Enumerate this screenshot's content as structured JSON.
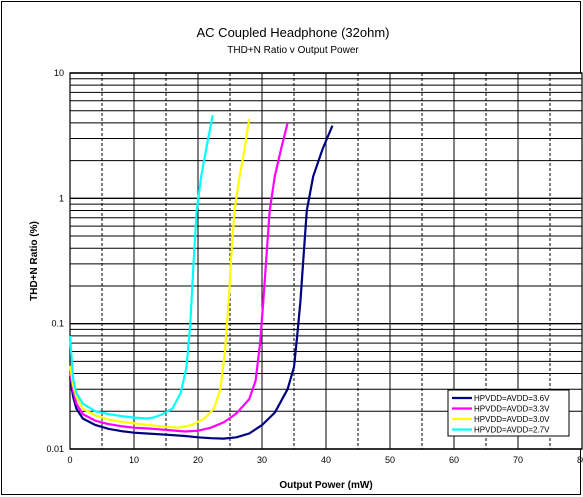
{
  "chart_data": {
    "type": "line",
    "title": "AC Coupled Headphone (32ohm)",
    "subtitle": "THD+N Ratio v Output Power",
    "xlabel": "Output Power (mW)",
    "ylabel": "THD+N Ratio (%)",
    "xlim": [
      0,
      80
    ],
    "ylim": [
      0.01,
      10
    ],
    "yscale": "log",
    "x_ticks": [
      "0",
      "10",
      "20",
      "30",
      "40",
      "50",
      "60",
      "70",
      "80"
    ],
    "y_ticks": [
      "0.01",
      "0.1",
      "1",
      "10"
    ],
    "grid": true,
    "legend_position": "bottom-right",
    "series": [
      {
        "name": "HPVDD=AVDD=3.6V",
        "color": "#000080",
        "points": [
          [
            0,
            0.038
          ],
          [
            0.5,
            0.026
          ],
          [
            1,
            0.021
          ],
          [
            2,
            0.0175
          ],
          [
            4,
            0.0155
          ],
          [
            6,
            0.0145
          ],
          [
            8,
            0.0139
          ],
          [
            10,
            0.0135
          ],
          [
            12,
            0.0133
          ],
          [
            15,
            0.013
          ],
          [
            18,
            0.0127
          ],
          [
            20,
            0.0124
          ],
          [
            22,
            0.0122
          ],
          [
            24,
            0.0121
          ],
          [
            26,
            0.0124
          ],
          [
            28,
            0.0133
          ],
          [
            30,
            0.0155
          ],
          [
            32,
            0.0195
          ],
          [
            34,
            0.03
          ],
          [
            35,
            0.045
          ],
          [
            35.5,
            0.08
          ],
          [
            36,
            0.15
          ],
          [
            36.5,
            0.35
          ],
          [
            37,
            0.8
          ],
          [
            38,
            1.5
          ],
          [
            39.5,
            2.5
          ],
          [
            41,
            3.8
          ]
        ]
      },
      {
        "name": "HPVDD=AVDD=3.3V",
        "color": "#ff00ff",
        "points": [
          [
            0,
            0.042
          ],
          [
            0.5,
            0.029
          ],
          [
            1,
            0.023
          ],
          [
            2,
            0.019
          ],
          [
            4,
            0.0168
          ],
          [
            6,
            0.0158
          ],
          [
            8,
            0.0152
          ],
          [
            10,
            0.0148
          ],
          [
            12,
            0.0146
          ],
          [
            15,
            0.0142
          ],
          [
            18,
            0.0138
          ],
          [
            20,
            0.014
          ],
          [
            22,
            0.0148
          ],
          [
            24,
            0.0163
          ],
          [
            26,
            0.0192
          ],
          [
            28,
            0.025
          ],
          [
            29,
            0.035
          ],
          [
            29.7,
            0.07
          ],
          [
            30.2,
            0.15
          ],
          [
            30.7,
            0.35
          ],
          [
            31.2,
            0.8
          ],
          [
            32,
            1.5
          ],
          [
            33,
            2.5
          ],
          [
            34,
            4.0
          ]
        ]
      },
      {
        "name": "HPVDD=AVDD=3.0V",
        "color": "#ffff00",
        "points": [
          [
            0,
            0.046
          ],
          [
            0.5,
            0.032
          ],
          [
            1,
            0.026
          ],
          [
            2,
            0.021
          ],
          [
            4,
            0.0185
          ],
          [
            6,
            0.0172
          ],
          [
            8,
            0.0165
          ],
          [
            10,
            0.016
          ],
          [
            12,
            0.0156
          ],
          [
            15,
            0.015
          ],
          [
            17,
            0.0148
          ],
          [
            19,
            0.0155
          ],
          [
            21,
            0.0175
          ],
          [
            22.5,
            0.021
          ],
          [
            23.5,
            0.03
          ],
          [
            24.2,
            0.06
          ],
          [
            24.8,
            0.15
          ],
          [
            25.2,
            0.35
          ],
          [
            25.7,
            0.8
          ],
          [
            26.5,
            1.5
          ],
          [
            27.3,
            2.5
          ],
          [
            28,
            4.3
          ]
        ]
      },
      {
        "name": "HPVDD=AVDD=2.7V",
        "color": "#00ffff",
        "points": [
          [
            0,
            0.08
          ],
          [
            0.5,
            0.036
          ],
          [
            1,
            0.028
          ],
          [
            2,
            0.023
          ],
          [
            4,
            0.02
          ],
          [
            6,
            0.019
          ],
          [
            8,
            0.0183
          ],
          [
            10,
            0.0178
          ],
          [
            12,
            0.0175
          ],
          [
            13,
            0.0178
          ],
          [
            14.5,
            0.019
          ],
          [
            16,
            0.021
          ],
          [
            17.3,
            0.028
          ],
          [
            18.2,
            0.045
          ],
          [
            18.8,
            0.1
          ],
          [
            19.3,
            0.3
          ],
          [
            19.8,
            0.8
          ],
          [
            20.5,
            1.5
          ],
          [
            21.3,
            2.5
          ],
          [
            22.3,
            4.6
          ]
        ]
      }
    ]
  }
}
